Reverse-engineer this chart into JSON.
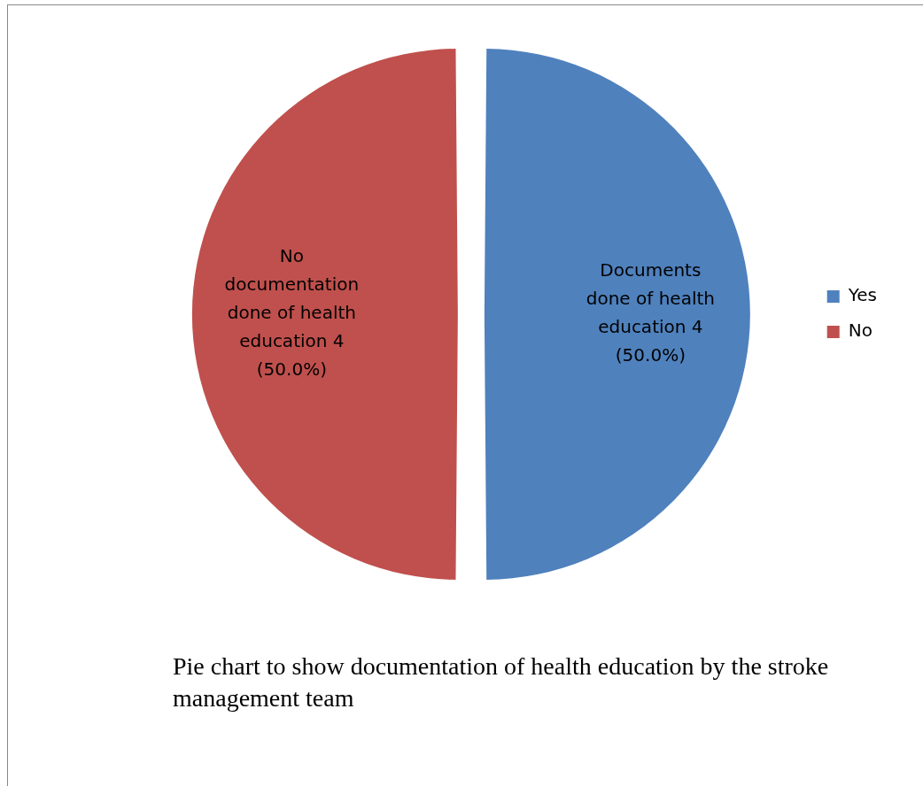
{
  "chart_data": {
    "type": "pie",
    "categories": [
      "Yes",
      "No"
    ],
    "values": [
      4,
      4
    ],
    "colors": [
      "#4f81bd",
      "#c0504d"
    ],
    "value_labels": [
      "Documents  done of health education 4 (50.0%)",
      "No documentation done of health education 4 (50.0%)"
    ],
    "legend": "right",
    "annotations": [
      "Pie chart to show documentation of health education by the stroke management team"
    ]
  }
}
